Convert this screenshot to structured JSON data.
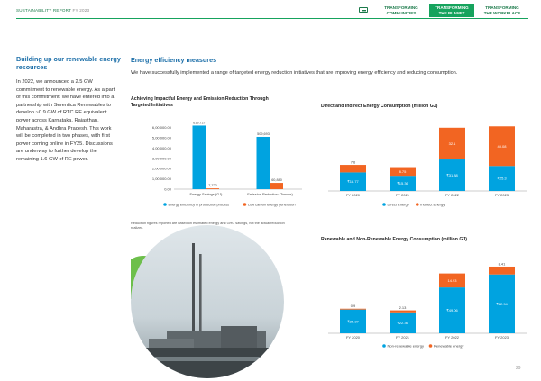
{
  "header": {
    "report": "SUSTAINABILITY REPORT",
    "year": "FY 2023",
    "tabs": [
      {
        "line1": "TRANSFORMING",
        "line2": "COMMUNITIES"
      },
      {
        "line1": "TRANSFORMING",
        "line2": "THE PLANET"
      },
      {
        "line1": "TRANSFORMING",
        "line2": "THE WORKPLACE"
      }
    ],
    "active_tab": 1
  },
  "left": {
    "title": "Building up our renewable energy resources",
    "body": "In 2022, we announced a 2.5 GW commitment to renewable energy. As a part of this commitment, we have entered into a partnership with Serentica Renewables to develop ~0.9 GW of RTC RE equivalent power across Karnataka, Rajasthan, Maharastra, & Andhra Pradesh. This work will be completed in two phases, with first power coming online in FY25. Discussions are underway to further develop the remaining 1.6 GW of RE power."
  },
  "mid": {
    "title": "Energy efficiency measures",
    "body": "We have successfully implemented a range of targeted energy reduction initiatives that are improving energy efficiency and reducing consumption.",
    "note": "Reduction figures reported are based on estimated energy and GHG savings, not the actual reduction realized."
  },
  "colors": {
    "blue": "#00a3e0",
    "orange": "#f26522",
    "title_blue": "#1b6ea8",
    "green": "#16a35d"
  },
  "chart_data": [
    {
      "type": "bar",
      "title": "Achieving Impactful Energy and Emission Reduction Through Targeted Initiatives",
      "categories": [
        "Energy Savings (GJ)",
        "Emission Reduction (Tonnes)"
      ],
      "series": [
        {
          "name": "Energy efficiency in production process",
          "color": "#00a3e0",
          "values": [
            619727,
            509693
          ],
          "labels": [
            "619,727",
            "509,693"
          ]
        },
        {
          "name": "Low carbon energy generation",
          "color": "#f26522",
          "values": [
            7722,
            60880
          ],
          "labels": [
            "7,722",
            "60,880"
          ]
        }
      ],
      "yticks": [
        "0.00",
        "1,00,000.00",
        "2,00,000.00",
        "3,00,000.00",
        "4,00,000.00",
        "5,00,000.00",
        "6,00,000.00"
      ],
      "ylim": [
        0,
        650000
      ],
      "grid": false,
      "legend": "bottom"
    },
    {
      "type": "bar",
      "stacked": true,
      "title": "Direct and Indirect Energy Consumption (million GJ)",
      "categories": [
        "FY 2020",
        "FY 2021",
        "FY 2022",
        "FY 2023"
      ],
      "series": [
        {
          "name": "Direct Energy",
          "color": "#00a3e0",
          "values": [
            18.77,
            15.36,
            31.88,
            25.3
          ],
          "labels": [
            "₹18.77",
            "₹15.36",
            "₹31.88",
            "₹25.3"
          ]
        },
        {
          "name": "Indirect Energy",
          "color": "#f26522",
          "values": [
            7.6,
            8.75,
            32.1,
            40.08
          ],
          "labels": [
            "7.6",
            "8.75",
            "32.1",
            "40.08"
          ]
        }
      ],
      "ylim": [
        0,
        72
      ],
      "grid": false,
      "legend": "bottom"
    },
    {
      "type": "bar",
      "stacked": true,
      "title": "Renewable and Non-Renewable Energy Consumption (million GJ)",
      "categories": [
        "FY 2020",
        "FY 2021",
        "FY 2022",
        "FY 2023"
      ],
      "series": [
        {
          "name": "Non-renewable energy",
          "color": "#00a3e0",
          "values": [
            25.37,
            22.36,
            49.06,
            62.94
          ],
          "labels": [
            "₹25.37",
            "₹22.36",
            "₹49.06",
            "₹62.94"
          ]
        },
        {
          "name": "Renewable energy",
          "color": "#f26522",
          "values": [
            0.9,
            2.13,
            14.93,
            8.41
          ],
          "labels": [
            "0.9",
            "2.13",
            "14.93",
            "8.41"
          ]
        }
      ],
      "ylim": [
        0,
        80
      ],
      "grid": false,
      "legend": "bottom"
    }
  ],
  "page_number": "29"
}
